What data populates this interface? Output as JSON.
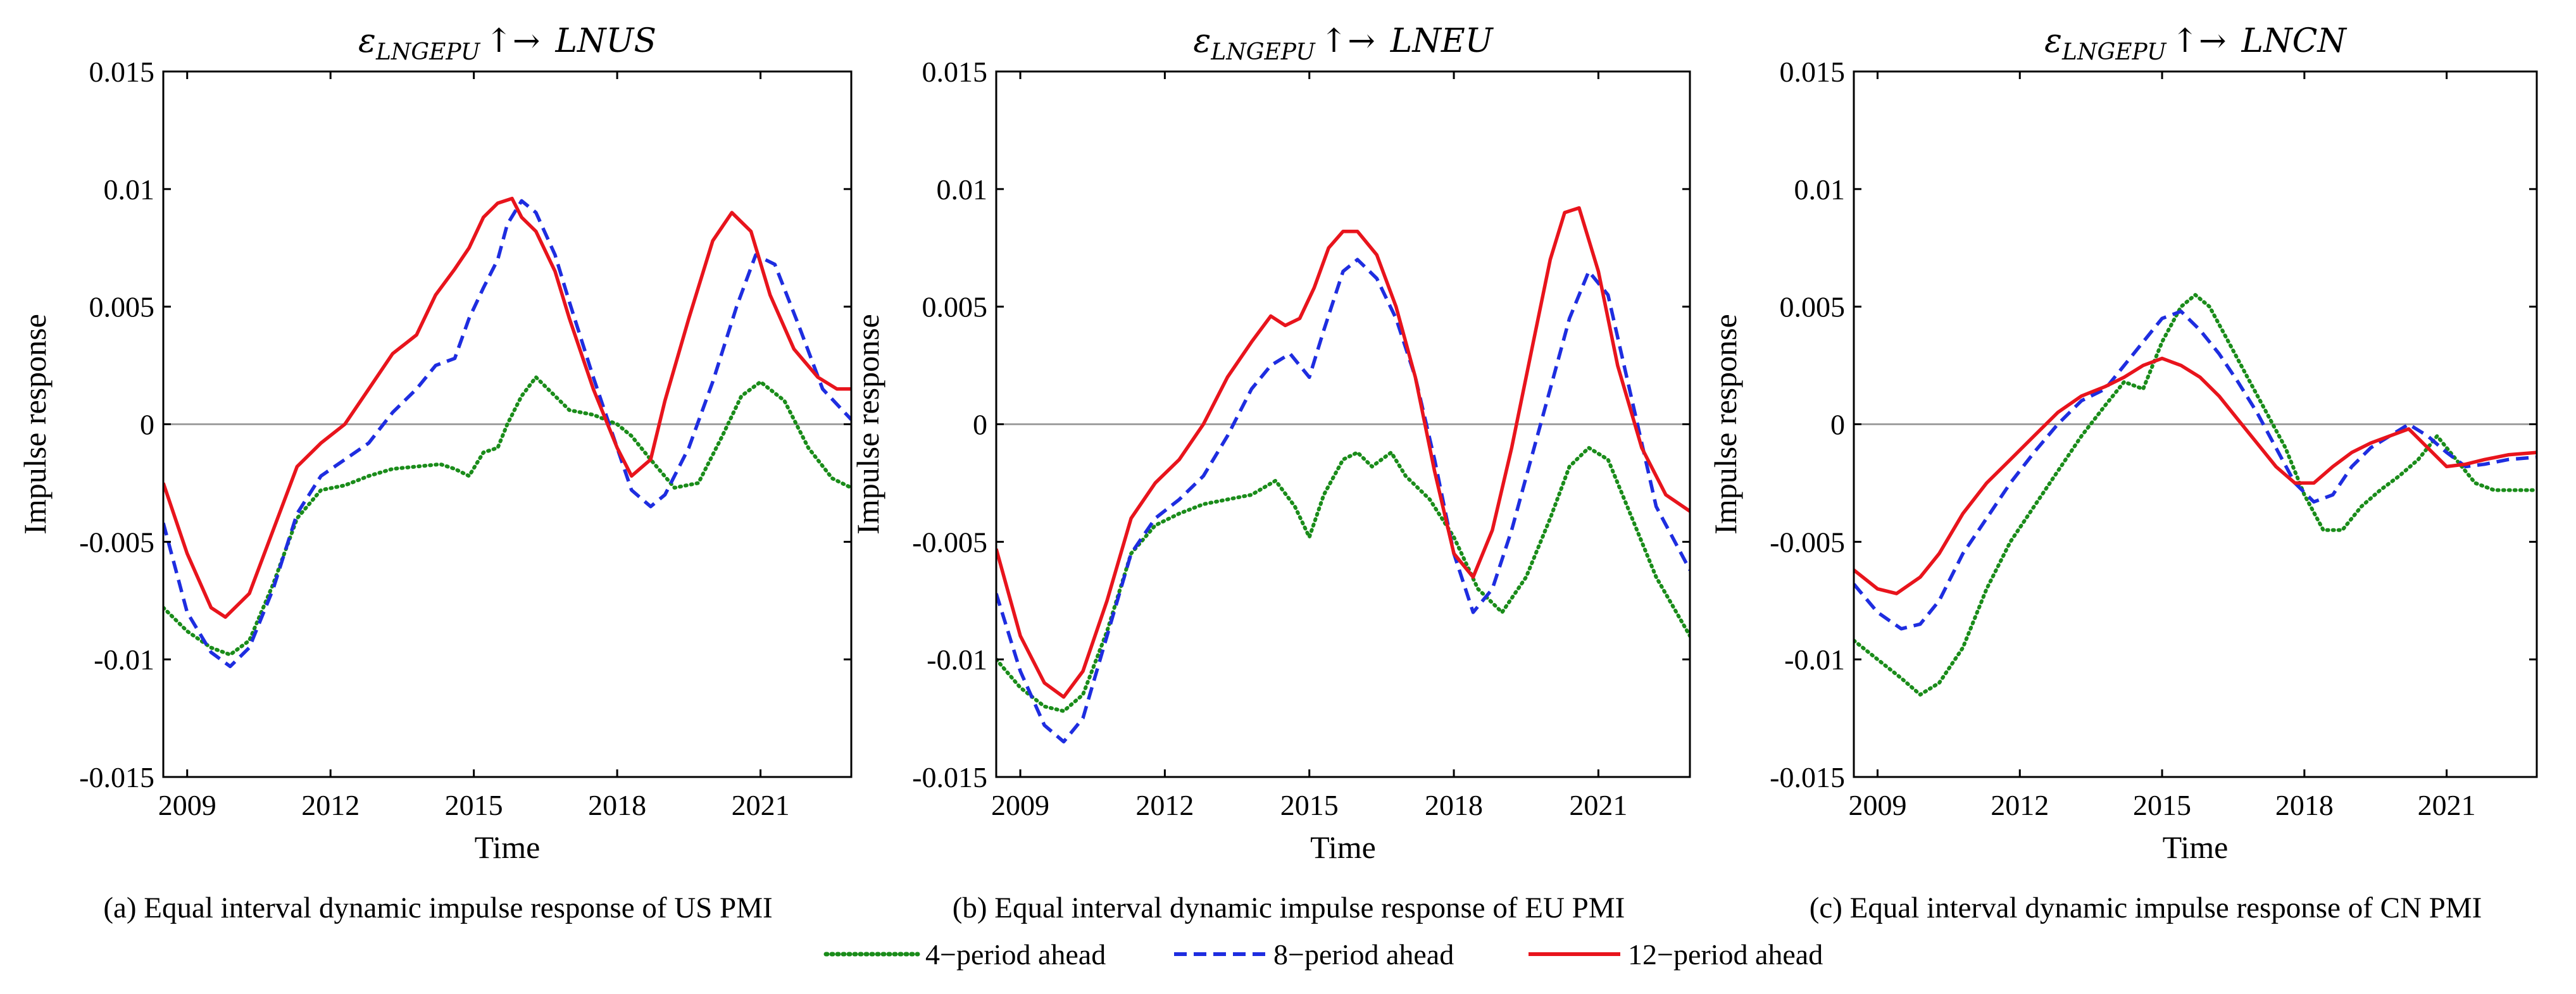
{
  "figure": {
    "captions": [
      "(a) Equal interval dynamic impulse response of US PMI",
      "(b) Equal interval dynamic impulse response of EU PMI",
      "(c) Equal interval dynamic impulse response of CN PMI"
    ],
    "legend": [
      "4−period ahead",
      "8−period ahead",
      "12−period ahead"
    ],
    "colors": {
      "h4": "#1a8c1a",
      "h8": "#1e2de0",
      "h12": "#e8141c",
      "zero": "#a0a0a0"
    }
  },
  "chart_data": [
    {
      "type": "line",
      "title": "εLNGEPU ↑→ LNUS",
      "title_parts": {
        "eps": "ε",
        "sub": "LNGEPU",
        "arrow": "↑→",
        "target": "LNUS"
      },
      "xlabel": "Time",
      "ylabel": "Impulse response",
      "xlim": [
        2008.5,
        2022.9
      ],
      "ylim": [
        -0.015,
        0.015
      ],
      "xticks": [
        2009,
        2012,
        2015,
        2018,
        2021
      ],
      "yticks": [
        -0.015,
        -0.01,
        -0.005,
        0,
        0.005,
        0.01,
        0.015
      ],
      "ytick_labels": [
        "-0.015",
        "-0.01",
        "-0.005",
        "0",
        "0.005",
        "0.01",
        "0.015"
      ],
      "series": [
        {
          "name": "4−period ahead",
          "style": "dotted",
          "color": "#1a8c1a",
          "x": [
            2008.5,
            2009.0,
            2009.5,
            2009.9,
            2010.3,
            2010.8,
            2011.3,
            2011.8,
            2012.3,
            2012.8,
            2013.3,
            2013.8,
            2014.3,
            2014.6,
            2014.9,
            2015.2,
            2015.5,
            2015.7,
            2016.0,
            2016.3,
            2016.7,
            2017.0,
            2017.5,
            2018.0,
            2018.3,
            2018.7,
            2019.2,
            2019.7,
            2020.2,
            2020.6,
            2021.0,
            2021.5,
            2022.0,
            2022.5,
            2022.9
          ],
          "y": [
            -0.0078,
            -0.0088,
            -0.0095,
            -0.0098,
            -0.0092,
            -0.0068,
            -0.004,
            -0.0028,
            -0.0026,
            -0.0022,
            -0.0019,
            -0.0018,
            -0.0017,
            -0.0019,
            -0.0022,
            -0.0012,
            -0.001,
            0.0,
            0.0012,
            0.002,
            0.0012,
            0.0006,
            0.0004,
            0.0,
            -0.0005,
            -0.0015,
            -0.0027,
            -0.0025,
            -0.0005,
            0.0012,
            0.0018,
            0.001,
            -0.001,
            -0.0023,
            -0.0027
          ]
        },
        {
          "name": "8−period ahead",
          "style": "dashed",
          "color": "#1e2de0",
          "x": [
            2008.5,
            2009.0,
            2009.5,
            2009.9,
            2010.3,
            2010.8,
            2011.3,
            2011.8,
            2012.3,
            2012.8,
            2013.3,
            2013.8,
            2014.2,
            2014.6,
            2014.9,
            2015.2,
            2015.5,
            2015.7,
            2016.0,
            2016.3,
            2016.7,
            2017.0,
            2017.5,
            2018.0,
            2018.3,
            2018.7,
            2019.0,
            2019.5,
            2020.0,
            2020.5,
            2020.9,
            2021.3,
            2021.8,
            2022.3,
            2022.9
          ],
          "y": [
            -0.0042,
            -0.008,
            -0.0097,
            -0.0103,
            -0.0095,
            -0.007,
            -0.0038,
            -0.0022,
            -0.0015,
            -0.0008,
            0.0005,
            0.0015,
            0.0025,
            0.0028,
            0.0045,
            0.0058,
            0.007,
            0.0085,
            0.0095,
            0.009,
            0.0072,
            0.0052,
            0.002,
            -0.001,
            -0.0028,
            -0.0035,
            -0.003,
            -0.001,
            0.0018,
            0.005,
            0.0072,
            0.0068,
            0.0042,
            0.0015,
            0.0002
          ]
        },
        {
          "name": "12−period ahead",
          "style": "solid",
          "color": "#e8141c",
          "x": [
            2008.5,
            2009.0,
            2009.5,
            2009.8,
            2010.3,
            2010.8,
            2011.3,
            2011.8,
            2012.3,
            2012.8,
            2013.3,
            2013.8,
            2014.2,
            2014.6,
            2014.9,
            2015.2,
            2015.5,
            2015.8,
            2016.0,
            2016.3,
            2016.7,
            2017.0,
            2017.5,
            2018.0,
            2018.3,
            2018.7,
            2019.0,
            2019.5,
            2020.0,
            2020.4,
            2020.8,
            2021.2,
            2021.7,
            2022.2,
            2022.6,
            2022.9
          ],
          "y": [
            -0.0025,
            -0.0055,
            -0.0078,
            -0.0082,
            -0.0072,
            -0.0045,
            -0.0018,
            -0.0008,
            0.0,
            0.0015,
            0.003,
            0.0038,
            0.0055,
            0.0066,
            0.0075,
            0.0088,
            0.0094,
            0.0096,
            0.0088,
            0.0082,
            0.0065,
            0.0045,
            0.0015,
            -0.001,
            -0.0022,
            -0.0015,
            0.001,
            0.0045,
            0.0078,
            0.009,
            0.0082,
            0.0055,
            0.0032,
            0.002,
            0.0015,
            0.0015
          ]
        }
      ]
    },
    {
      "type": "line",
      "title": "εLNGEPU ↑→ LNEU",
      "title_parts": {
        "eps": "ε",
        "sub": "LNGEPU",
        "arrow": "↑→",
        "target": "LNEU"
      },
      "xlabel": "Time",
      "ylabel": "Impulse response",
      "xlim": [
        2008.5,
        2022.9
      ],
      "ylim": [
        -0.015,
        0.015
      ],
      "xticks": [
        2009,
        2012,
        2015,
        2018,
        2021
      ],
      "yticks": [
        -0.015,
        -0.01,
        -0.005,
        0,
        0.005,
        0.01,
        0.015
      ],
      "ytick_labels": [
        "-0.015",
        "-0.01",
        "-0.005",
        "0",
        "0.005",
        "0.01",
        "0.015"
      ],
      "series": [
        {
          "name": "4−period ahead",
          "style": "dotted",
          "color": "#1a8c1a",
          "x": [
            2008.5,
            2009.0,
            2009.5,
            2009.9,
            2010.3,
            2010.8,
            2011.3,
            2011.8,
            2012.3,
            2012.8,
            2013.3,
            2013.8,
            2014.3,
            2014.7,
            2015.0,
            2015.3,
            2015.7,
            2016.0,
            2016.3,
            2016.7,
            2017.0,
            2017.5,
            2018.0,
            2018.5,
            2019.0,
            2019.5,
            2020.0,
            2020.4,
            2020.8,
            2021.2,
            2021.7,
            2022.2,
            2022.9
          ],
          "y": [
            -0.01,
            -0.0112,
            -0.012,
            -0.0122,
            -0.0115,
            -0.0088,
            -0.0055,
            -0.0043,
            -0.0038,
            -0.0034,
            -0.0032,
            -0.003,
            -0.0024,
            -0.0035,
            -0.0048,
            -0.003,
            -0.0015,
            -0.0012,
            -0.0018,
            -0.0012,
            -0.0022,
            -0.0032,
            -0.0048,
            -0.007,
            -0.008,
            -0.0065,
            -0.004,
            -0.0018,
            -0.001,
            -0.0015,
            -0.004,
            -0.0065,
            -0.009
          ]
        },
        {
          "name": "8−period ahead",
          "style": "dashed",
          "color": "#1e2de0",
          "x": [
            2008.5,
            2009.0,
            2009.5,
            2009.9,
            2010.3,
            2010.8,
            2011.3,
            2011.8,
            2012.3,
            2012.8,
            2013.3,
            2013.8,
            2014.2,
            2014.6,
            2015.0,
            2015.3,
            2015.7,
            2016.0,
            2016.4,
            2016.8,
            2017.2,
            2017.6,
            2018.0,
            2018.4,
            2018.8,
            2019.2,
            2019.6,
            2020.0,
            2020.4,
            2020.8,
            2021.2,
            2021.7,
            2022.2,
            2022.9
          ],
          "y": [
            -0.0072,
            -0.0105,
            -0.0128,
            -0.0135,
            -0.0125,
            -0.009,
            -0.0055,
            -0.004,
            -0.0032,
            -0.0022,
            -0.0005,
            0.0015,
            0.0025,
            0.003,
            0.002,
            0.004,
            0.0065,
            0.007,
            0.0062,
            0.0045,
            0.002,
            -0.0015,
            -0.0055,
            -0.008,
            -0.007,
            -0.0045,
            -0.0015,
            0.0015,
            0.0045,
            0.0065,
            0.0055,
            0.001,
            -0.0035,
            -0.0062
          ]
        },
        {
          "name": "12−period ahead",
          "style": "solid",
          "color": "#e8141c",
          "x": [
            2008.5,
            2009.0,
            2009.5,
            2009.9,
            2010.3,
            2010.8,
            2011.3,
            2011.8,
            2012.3,
            2012.8,
            2013.3,
            2013.8,
            2014.2,
            2014.5,
            2014.8,
            2015.1,
            2015.4,
            2015.7,
            2016.0,
            2016.4,
            2016.8,
            2017.2,
            2017.6,
            2018.0,
            2018.4,
            2018.8,
            2019.2,
            2019.6,
            2020.0,
            2020.3,
            2020.6,
            2021.0,
            2021.4,
            2021.9,
            2022.4,
            2022.9
          ],
          "y": [
            -0.0053,
            -0.009,
            -0.011,
            -0.0116,
            -0.0105,
            -0.0075,
            -0.004,
            -0.0025,
            -0.0015,
            0.0,
            0.002,
            0.0035,
            0.0046,
            0.0042,
            0.0045,
            0.0058,
            0.0075,
            0.0082,
            0.0082,
            0.0072,
            0.005,
            0.002,
            -0.002,
            -0.0055,
            -0.0065,
            -0.0045,
            -0.001,
            0.003,
            0.007,
            0.009,
            0.0092,
            0.0065,
            0.0025,
            -0.001,
            -0.003,
            -0.0037
          ]
        }
      ]
    },
    {
      "type": "line",
      "title": "εLNGEPU ↑→ LNCN",
      "title_parts": {
        "eps": "ε",
        "sub": "LNGEPU",
        "arrow": "↑→",
        "target": "LNCN"
      },
      "xlabel": "Time",
      "ylabel": "Impulse response",
      "xlim": [
        2008.5,
        2022.9
      ],
      "ylim": [
        -0.015,
        0.015
      ],
      "xticks": [
        2009,
        2012,
        2015,
        2018,
        2021
      ],
      "yticks": [
        -0.015,
        -0.01,
        -0.005,
        0,
        0.005,
        0.01,
        0.015
      ],
      "ytick_labels": [
        "-0.015",
        "-0.01",
        "-0.005",
        "0",
        "0.005",
        "0.01",
        "0.015"
      ],
      "series": [
        {
          "name": "4−period ahead",
          "style": "dotted",
          "color": "#1a8c1a",
          "x": [
            2008.5,
            2009.0,
            2009.5,
            2009.9,
            2010.3,
            2010.8,
            2011.3,
            2011.8,
            2012.3,
            2012.8,
            2013.3,
            2013.8,
            2014.2,
            2014.6,
            2015.0,
            2015.4,
            2015.7,
            2016.0,
            2016.4,
            2016.8,
            2017.2,
            2017.6,
            2018.0,
            2018.4,
            2018.8,
            2019.2,
            2019.6,
            2020.0,
            2020.4,
            2020.8,
            2021.2,
            2021.6,
            2022.0,
            2022.5,
            2022.9
          ],
          "y": [
            -0.0092,
            -0.01,
            -0.0108,
            -0.0115,
            -0.011,
            -0.0095,
            -0.007,
            -0.005,
            -0.0035,
            -0.002,
            -0.0005,
            0.0008,
            0.0018,
            0.0015,
            0.0035,
            0.005,
            0.0055,
            0.005,
            0.0035,
            0.002,
            0.0005,
            -0.001,
            -0.003,
            -0.0045,
            -0.0045,
            -0.0035,
            -0.0028,
            -0.0022,
            -0.0015,
            -0.0005,
            -0.0015,
            -0.0025,
            -0.0028,
            -0.0028,
            -0.0028
          ]
        },
        {
          "name": "8−period ahead",
          "style": "dashed",
          "color": "#1e2de0",
          "x": [
            2008.5,
            2009.0,
            2009.5,
            2009.9,
            2010.3,
            2010.8,
            2011.3,
            2011.8,
            2012.3,
            2012.8,
            2013.3,
            2013.8,
            2014.2,
            2014.6,
            2015.0,
            2015.4,
            2015.8,
            2016.2,
            2016.6,
            2017.0,
            2017.4,
            2017.8,
            2018.2,
            2018.6,
            2019.0,
            2019.4,
            2019.8,
            2020.2,
            2020.6,
            2021.0,
            2021.4,
            2021.8,
            2022.3,
            2022.9
          ],
          "y": [
            -0.0068,
            -0.008,
            -0.0087,
            -0.0085,
            -0.0075,
            -0.0055,
            -0.004,
            -0.0025,
            -0.0012,
            0.0,
            0.001,
            0.0015,
            0.0025,
            0.0035,
            0.0045,
            0.0048,
            0.004,
            0.003,
            0.0018,
            0.0005,
            -0.001,
            -0.0025,
            -0.0033,
            -0.003,
            -0.0018,
            -0.001,
            -0.0005,
            0.0,
            -0.0005,
            -0.0012,
            -0.0018,
            -0.0017,
            -0.0015,
            -0.0014
          ]
        },
        {
          "name": "12−period ahead",
          "style": "solid",
          "color": "#e8141c",
          "x": [
            2008.5,
            2009.0,
            2009.4,
            2009.9,
            2010.3,
            2010.8,
            2011.3,
            2011.8,
            2012.3,
            2012.8,
            2013.3,
            2013.8,
            2014.2,
            2014.6,
            2015.0,
            2015.4,
            2015.8,
            2016.2,
            2016.6,
            2017.0,
            2017.4,
            2017.8,
            2018.2,
            2018.6,
            2019.0,
            2019.4,
            2019.8,
            2020.2,
            2020.6,
            2021.0,
            2021.4,
            2021.8,
            2022.3,
            2022.9
          ],
          "y": [
            -0.0062,
            -0.007,
            -0.0072,
            -0.0065,
            -0.0055,
            -0.0038,
            -0.0025,
            -0.0015,
            -0.0005,
            0.0005,
            0.0012,
            0.0016,
            0.002,
            0.0025,
            0.0028,
            0.0025,
            0.002,
            0.0012,
            0.0002,
            -0.0008,
            -0.0018,
            -0.0025,
            -0.0025,
            -0.0018,
            -0.0012,
            -0.0008,
            -0.0005,
            -0.0002,
            -0.001,
            -0.0018,
            -0.0017,
            -0.0015,
            -0.0013,
            -0.0012
          ]
        }
      ]
    }
  ]
}
